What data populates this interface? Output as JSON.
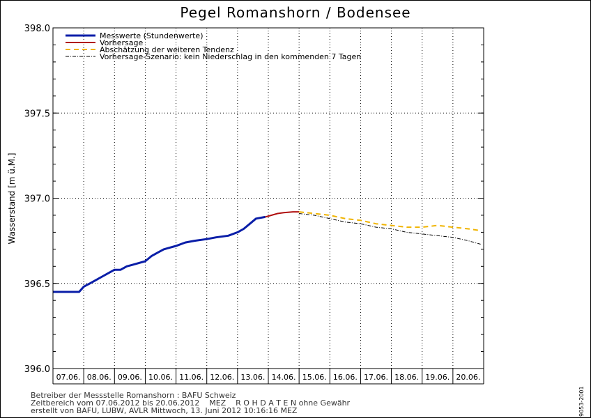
{
  "chart_data": {
    "type": "line",
    "title": "Pegel Romanshorn / Bodensee",
    "ylabel": "Wasserstand [m ü.M.]",
    "xlabel": "",
    "ylim": [
      396.0,
      398.0
    ],
    "yticks": [
      396.0,
      396.5,
      397.0,
      397.5,
      398.0
    ],
    "ytick_labels": [
      "396.0",
      "396.5",
      "397.0",
      "397.5",
      "398.0"
    ],
    "x_unit": "day index (0 = 07.06.2012 00:00)",
    "xlim": [
      0,
      14
    ],
    "x_tick_labels": [
      "07.06.",
      "08.06.",
      "09.06.",
      "10.06.",
      "11.06.",
      "12.06.",
      "13.06.",
      "14.06.",
      "15.06.",
      "16.06.",
      "17.06.",
      "18.06.",
      "19.06.",
      "20.06."
    ],
    "grid": true,
    "legend_position": "top-left",
    "series": [
      {
        "name": "Messwerte (Stundenwerte)",
        "color": "#0a1ea8",
        "style": "solid-thick",
        "x": [
          0,
          0.85,
          1.0,
          1.2,
          1.4,
          1.6,
          1.8,
          2.0,
          2.2,
          2.4,
          2.6,
          2.8,
          3.0,
          3.2,
          3.4,
          3.6,
          3.8,
          4.0,
          4.3,
          4.6,
          5.0,
          5.3,
          5.7,
          6.0,
          6.2,
          6.4,
          6.6,
          6.9
        ],
        "y": [
          396.45,
          396.45,
          396.48,
          396.5,
          396.52,
          396.54,
          396.56,
          396.58,
          396.58,
          396.6,
          396.61,
          396.62,
          396.63,
          396.66,
          396.68,
          396.7,
          396.71,
          396.72,
          396.74,
          396.75,
          396.76,
          396.77,
          396.78,
          396.8,
          396.82,
          396.85,
          396.88,
          396.89
        ]
      },
      {
        "name": "Vorhersage",
        "color": "#b01010",
        "style": "solid",
        "x": [
          6.9,
          7.1,
          7.3,
          7.5,
          7.8,
          8.0
        ],
        "y": [
          396.89,
          396.9,
          396.91,
          396.915,
          396.92,
          396.92
        ]
      },
      {
        "name": "Abschätzung der weiteren Tendenz",
        "color": "#f0b400",
        "style": "dashed",
        "x": [
          8.0,
          8.5,
          9.0,
          9.5,
          10.0,
          10.5,
          11.0,
          11.5,
          12.0,
          12.5,
          13.0,
          13.5,
          13.9
        ],
        "y": [
          396.92,
          396.91,
          396.9,
          396.88,
          396.87,
          396.85,
          396.84,
          396.83,
          396.83,
          396.84,
          396.83,
          396.82,
          396.81
        ]
      },
      {
        "name": "Vorhersage-Szenario: kein Niederschlag in den kommenden 7 Tagen",
        "color": "#000000",
        "style": "dash-dot",
        "x": [
          8.0,
          8.5,
          9.0,
          9.5,
          10.0,
          10.5,
          11.0,
          11.5,
          12.0,
          12.5,
          13.0,
          13.5,
          13.9
        ],
        "y": [
          396.91,
          396.9,
          396.88,
          396.86,
          396.85,
          396.83,
          396.82,
          396.8,
          396.79,
          396.78,
          396.77,
          396.75,
          396.73
        ]
      }
    ]
  },
  "footer": {
    "line1": "Betreiber der Messstelle Romanshorn : BAFU Schweiz",
    "line2": "Zeitbereich vom 07.06.2012 bis 20.06.2012    MEZ    R O H D A T E N ohne Gewähr",
    "line3": "erstellt von BAFU, LUBW, AVLR Mittwoch, 13. Juni 2012 10:16:16 MEZ"
  },
  "code": "9053-2001"
}
